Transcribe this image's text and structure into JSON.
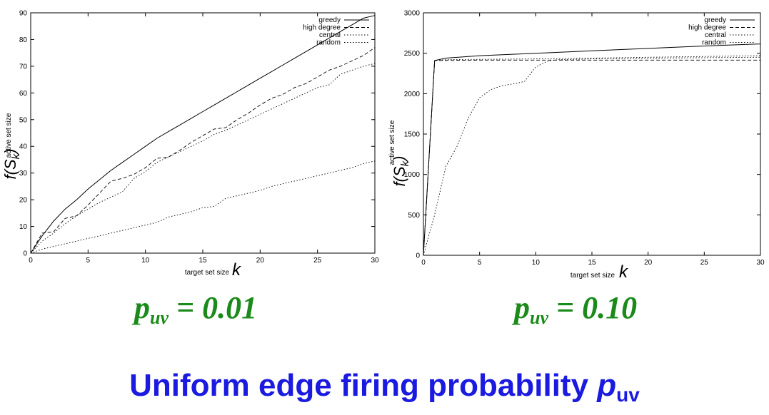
{
  "title": {
    "main": "Uniform edge firing probability ",
    "var": "p",
    "sub": "uv"
  },
  "chart_data": [
    {
      "type": "line",
      "caption": {
        "var": "p",
        "sub": "uv",
        "rest": " = 0.01"
      },
      "xlabel": "target set size",
      "xlabel_var": "k",
      "ylabel_fn": "f(S",
      "ylabel_sub": "k",
      "ylabel_close": ")",
      "ylabel_small": "active set size",
      "xlim": [
        0,
        30
      ],
      "ylim": [
        0,
        90
      ],
      "xticks": [
        0,
        5,
        10,
        15,
        20,
        25,
        30
      ],
      "yticks": [
        0,
        10,
        20,
        30,
        40,
        50,
        60,
        70,
        80,
        90
      ],
      "legend_position": "top-right",
      "series": [
        {
          "name": "greedy",
          "style": "solid",
          "x": [
            0,
            1,
            2,
            3,
            4,
            5,
            6,
            7,
            8,
            9,
            10,
            11,
            12,
            13,
            14,
            15,
            16,
            17,
            18,
            19,
            20,
            21,
            22,
            23,
            24,
            25,
            26,
            27,
            28,
            29,
            30
          ],
          "y": [
            0,
            6.5,
            12,
            16.5,
            20,
            24,
            27.5,
            31,
            34,
            37,
            40,
            43,
            45.5,
            48,
            50.5,
            53,
            55.5,
            58,
            60.5,
            63,
            65.5,
            68,
            70.5,
            73,
            75.5,
            78,
            80.5,
            83,
            85.5,
            88,
            89
          ]
        },
        {
          "name": "high degree",
          "style": "dashed",
          "x": [
            0,
            1,
            2,
            3,
            4,
            5,
            6,
            7,
            8,
            9,
            10,
            11,
            12,
            13,
            14,
            15,
            16,
            17,
            18,
            19,
            20,
            21,
            22,
            23,
            24,
            25,
            26,
            27,
            28,
            29,
            30
          ],
          "y": [
            0,
            7.5,
            8,
            13,
            14,
            18,
            22.5,
            27,
            28,
            29.5,
            32,
            35.5,
            36,
            38.5,
            41.5,
            44,
            46.5,
            47,
            50,
            52.5,
            55.5,
            58,
            59.5,
            62,
            63.5,
            66,
            68.5,
            70,
            72,
            74,
            77
          ]
        },
        {
          "name": "central",
          "style": "dotted",
          "x": [
            0,
            1,
            2,
            3,
            4,
            5,
            6,
            7,
            8,
            9,
            10,
            11,
            12,
            13,
            14,
            15,
            16,
            17,
            18,
            19,
            20,
            21,
            22,
            23,
            24,
            25,
            26,
            27,
            28,
            29,
            30
          ],
          "y": [
            0,
            4.5,
            7.5,
            11,
            14,
            16.5,
            19,
            21,
            23,
            28,
            30.5,
            34,
            36,
            38,
            40,
            42,
            44.5,
            46,
            48,
            50,
            52,
            54,
            56,
            58,
            60,
            62,
            63,
            67,
            68.5,
            70,
            71
          ]
        },
        {
          "name": "random",
          "style": "dotted",
          "x": [
            0,
            1,
            2,
            3,
            4,
            5,
            6,
            7,
            8,
            9,
            10,
            11,
            12,
            13,
            14,
            15,
            16,
            17,
            18,
            19,
            20,
            21,
            22,
            23,
            24,
            25,
            26,
            27,
            28,
            29,
            30
          ],
          "y": [
            0,
            1.5,
            2.5,
            3.5,
            4.5,
            5.5,
            6.5,
            7.5,
            8.5,
            9.5,
            10.5,
            11.5,
            13.5,
            14.5,
            15.5,
            17,
            17.5,
            20.5,
            21.5,
            22.5,
            23.5,
            25,
            26,
            27,
            28,
            29,
            30,
            31,
            32,
            33.5,
            34.5
          ]
        }
      ]
    },
    {
      "type": "line",
      "caption": {
        "var": "p",
        "sub": "uv",
        "rest": " = 0.10"
      },
      "xlabel": "target set size",
      "xlabel_var": "k",
      "ylabel_fn": "f(S",
      "ylabel_sub": "k",
      "ylabel_close": ")",
      "ylabel_small": "active set size",
      "xlim": [
        0,
        30
      ],
      "ylim": [
        0,
        3000
      ],
      "xticks": [
        0,
        5,
        10,
        15,
        20,
        25,
        30
      ],
      "yticks": [
        0,
        500,
        1000,
        1500,
        2000,
        2500,
        3000
      ],
      "legend_position": "top-right",
      "series": [
        {
          "name": "greedy",
          "style": "solid",
          "x": [
            0,
            1,
            2,
            5,
            10,
            15,
            20,
            25,
            30
          ],
          "y": [
            0,
            2410,
            2440,
            2470,
            2500,
            2530,
            2560,
            2590,
            2615
          ]
        },
        {
          "name": "high degree",
          "style": "dashed",
          "x": [
            0,
            0.5,
            1,
            5,
            10,
            15,
            20,
            25,
            30
          ],
          "y": [
            0,
            1200,
            2410,
            2415,
            2415,
            2415,
            2415,
            2415,
            2415
          ]
        },
        {
          "name": "central",
          "style": "dotted",
          "x": [
            0,
            1,
            2,
            5,
            10,
            15,
            20,
            25,
            30
          ],
          "y": [
            0,
            2410,
            2420,
            2425,
            2430,
            2440,
            2450,
            2460,
            2470
          ]
        },
        {
          "name": "random",
          "style": "dotted",
          "x": [
            0,
            1,
            2,
            3,
            4,
            5,
            6,
            7,
            8,
            9,
            10,
            11,
            12,
            15,
            20,
            25,
            30
          ],
          "y": [
            0,
            500,
            1100,
            1350,
            1700,
            1950,
            2050,
            2100,
            2120,
            2150,
            2330,
            2400,
            2420,
            2430,
            2440,
            2445,
            2450
          ]
        }
      ]
    }
  ]
}
